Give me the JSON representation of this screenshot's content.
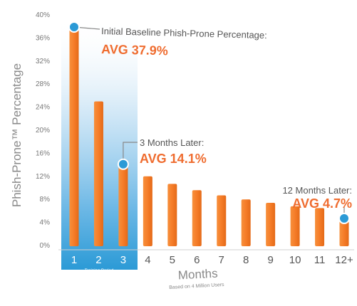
{
  "chart_data": {
    "type": "bar",
    "categories": [
      "1",
      "2",
      "3",
      "4",
      "5",
      "6",
      "7",
      "8",
      "9",
      "10",
      "11",
      "12+"
    ],
    "series": [
      {
        "values": [
          37.9,
          25.0,
          14.1,
          12.0,
          10.7,
          9.6,
          8.7,
          8.0,
          7.4,
          6.8,
          6.5,
          4.7
        ]
      }
    ],
    "ylabel": "Phish-Prone™ Percentage",
    "xlabel": "Months",
    "xlabel_sub": "Based on 4 Million Users",
    "ylim": [
      0,
      40
    ],
    "yticks": [
      "0%",
      "4%",
      "8%",
      "12%",
      "16%",
      "20%",
      "24%",
      "28%",
      "32%",
      "36%",
      "40%"
    ],
    "training_period": {
      "label": "Training Period",
      "categories": [
        "1",
        "2",
        "3"
      ]
    },
    "annotations": [
      {
        "category": "1",
        "label": "Initial Baseline Phish-Prone Percentage:",
        "avg": "AVG 37.9%"
      },
      {
        "category": "3",
        "label": "3 Months Later:",
        "avg": "AVG 14.1%"
      },
      {
        "category": "12+",
        "label": "12 Months Later:",
        "avg": "AVG 4.7%"
      }
    ],
    "grid": false,
    "colors": {
      "bar": "#f57c28",
      "marker": "#2b9ad6",
      "training_band": "#2b9ad6",
      "avg_text": "#ef6c2f"
    }
  }
}
